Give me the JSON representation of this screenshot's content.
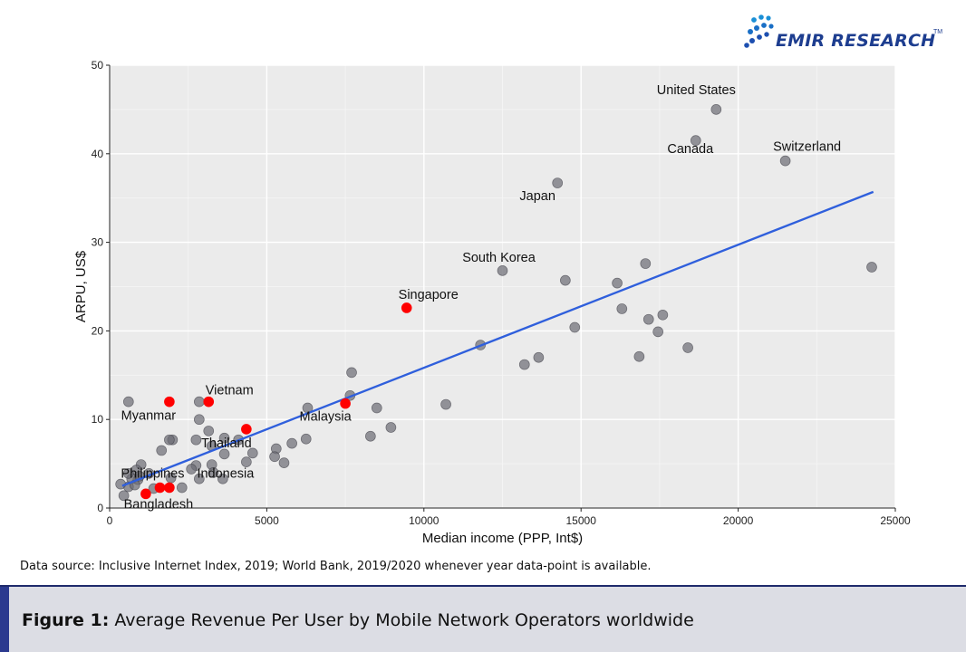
{
  "logo": {
    "text": "EMIR RESEARCH",
    "tm": "TM"
  },
  "source_note": "Data source: Inclusive Internet Index, 2019; World Bank, 2019/2020 whenever year data-point is available.",
  "caption": {
    "label": "Figure 1:",
    "text": " Average Revenue Per User by Mobile Network Operators worldwide"
  },
  "colors": {
    "point": "#6b6b73",
    "highlight": "#ff0000",
    "trend": "#2f5fdc",
    "panel": "#ebebeb",
    "brand": "#1d3d8f"
  },
  "chart_data": {
    "type": "scatter",
    "xlabel": "Median income (PPP, Int$)",
    "ylabel": "ARPU, US$",
    "xlim": [
      0,
      25000
    ],
    "ylim": [
      0,
      50
    ],
    "xticks": [
      0,
      5000,
      10000,
      15000,
      20000,
      25000
    ],
    "yticks": [
      0,
      10,
      20,
      30,
      40,
      50
    ],
    "grid": true,
    "trend_line": {
      "x": [
        400,
        24300
      ],
      "y": [
        2.5,
        35.7
      ]
    },
    "labeled_points": [
      {
        "label": "United States",
        "x": 19300,
        "y": 45.0
      },
      {
        "label": "Canada",
        "x": 18650,
        "y": 41.5
      },
      {
        "label": "Switzerland",
        "x": 21500,
        "y": 39.2
      },
      {
        "label": "Japan",
        "x": 14250,
        "y": 36.7
      },
      {
        "label": "South Korea",
        "x": 12500,
        "y": 26.8
      },
      {
        "label": "Singapore",
        "x": 9450,
        "y": 22.6,
        "highlight": true
      },
      {
        "label": "Vietnam",
        "x": 3150,
        "y": 12.0,
        "highlight": true
      },
      {
        "label": "Myanmar",
        "x": 1900,
        "y": 12.0,
        "highlight": true
      },
      {
        "label": "Malaysia",
        "x": 7500,
        "y": 11.8,
        "highlight": true
      },
      {
        "label": "Thailand",
        "x": 4350,
        "y": 8.9,
        "highlight": true
      },
      {
        "label": "Philippines",
        "x": 1600,
        "y": 2.3,
        "highlight": true
      },
      {
        "label": "Indonesia",
        "x": 1900,
        "y": 2.3,
        "highlight": true
      },
      {
        "label": "Bangladesh",
        "x": 1150,
        "y": 1.6,
        "highlight": true
      }
    ],
    "other_points": [
      [
        24250,
        27.2
      ],
      [
        17050,
        27.6
      ],
      [
        16150,
        25.4
      ],
      [
        14500,
        25.7
      ],
      [
        16300,
        22.5
      ],
      [
        17150,
        21.3
      ],
      [
        17600,
        21.8
      ],
      [
        14800,
        20.4
      ],
      [
        17450,
        19.9
      ],
      [
        11800,
        18.4
      ],
      [
        18400,
        18.1
      ],
      [
        16850,
        17.1
      ],
      [
        13650,
        17.0
      ],
      [
        13200,
        16.2
      ],
      [
        7700,
        15.3
      ],
      [
        10700,
        11.7
      ],
      [
        7650,
        12.7
      ],
      [
        8500,
        11.3
      ],
      [
        6300,
        11.3
      ],
      [
        8950,
        9.1
      ],
      [
        8300,
        8.1
      ],
      [
        6250,
        7.8
      ],
      [
        5800,
        7.3
      ],
      [
        5300,
        6.7
      ],
      [
        5250,
        5.8
      ],
      [
        5550,
        5.1
      ],
      [
        4550,
        6.2
      ],
      [
        4350,
        5.2
      ],
      [
        4100,
        7.7
      ],
      [
        3650,
        7.9
      ],
      [
        3650,
        6.1
      ],
      [
        3250,
        7.0
      ],
      [
        3150,
        8.7
      ],
      [
        2750,
        7.7
      ],
      [
        2850,
        10.0
      ],
      [
        2850,
        12.0
      ],
      [
        600,
        12.0
      ],
      [
        2000,
        7.7
      ],
      [
        1900,
        7.7
      ],
      [
        1650,
        6.5
      ],
      [
        3250,
        4.9
      ],
      [
        3300,
        4.0
      ],
      [
        3600,
        3.3
      ],
      [
        2750,
        4.8
      ],
      [
        2600,
        4.4
      ],
      [
        2850,
        3.3
      ],
      [
        2300,
        2.3
      ],
      [
        1950,
        3.4
      ],
      [
        1400,
        2.2
      ],
      [
        1250,
        3.9
      ],
      [
        1000,
        4.9
      ],
      [
        900,
        3.2
      ],
      [
        850,
        4.3
      ],
      [
        700,
        3.3
      ],
      [
        600,
        2.4
      ],
      [
        600,
        3.9
      ],
      [
        450,
        1.4
      ],
      [
        800,
        2.6
      ],
      [
        350,
        2.7
      ],
      [
        950,
        3.6
      ]
    ]
  }
}
